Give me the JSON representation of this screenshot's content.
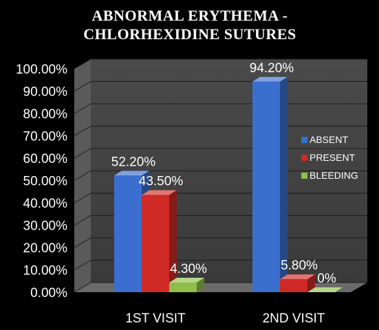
{
  "chart_data": {
    "type": "bar",
    "title_lines": [
      "ABNORMAL ERYTHEMA -",
      "CHLORHEXIDINE SUTURES"
    ],
    "categories": [
      "1ST VISIT",
      "2ND VISIT"
    ],
    "series": [
      {
        "name": "ABSENT",
        "values": [
          52.2,
          94.2
        ],
        "labels": [
          "52.20%",
          "94.20%"
        ],
        "color": "#3a6fd0"
      },
      {
        "name": "PRESENT",
        "values": [
          43.5,
          5.8
        ],
        "labels": [
          "43.50%",
          "5.80%"
        ],
        "color": "#cf2a26"
      },
      {
        "name": "BLEEDING",
        "values": [
          4.3,
          0
        ],
        "labels": [
          "4.30%",
          "0%"
        ],
        "color": "#8fbf4a"
      }
    ],
    "ylim": [
      0,
      100
    ],
    "yticks": [
      "0.00%",
      "10.00%",
      "20.00%",
      "30.00%",
      "40.00%",
      "50.00%",
      "60.00%",
      "70.00%",
      "80.00%",
      "90.00%",
      "100.00%"
    ],
    "legend_position": "right",
    "grid": true,
    "style": "3d"
  }
}
